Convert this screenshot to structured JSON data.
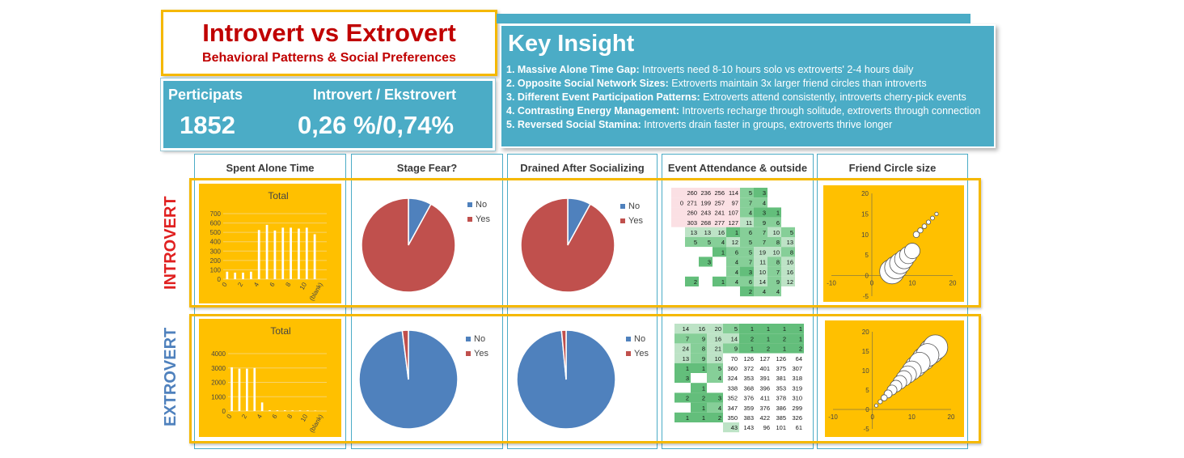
{
  "header": {
    "title": "Introvert vs Extrovert",
    "subtitle": "Behavioral Patterns & Social Preferences"
  },
  "kpi": {
    "participants_label": "Perticipats",
    "participants_value": "1852",
    "ratio_label": "Introvert / Ekstrovert",
    "ratio_value": "0,26 %/0,74%"
  },
  "insight": {
    "title": "Key Insight",
    "items": [
      {
        "bold": "1. Massive Alone Time Gap:",
        "text": " Introverts need 8-10 hours solo vs extroverts' 2-4 hours daily"
      },
      {
        "bold": "2. Opposite Social Network Sizes:",
        "text": " Extroverts maintain 3x larger friend circles than introverts"
      },
      {
        "bold": "3. Different Event Participation Patterns:",
        "text": " Extroverts attend consistently, introverts cherry-pick events"
      },
      {
        "bold": "4. Contrasting Energy Management:",
        "text": " Introverts recharge through solitude, extroverts through connection"
      },
      {
        "bold": "5. Reversed Social Stamina:",
        "text": " Introverts drain faster in groups, extroverts thrive longer"
      }
    ]
  },
  "columns": {
    "alone": "Spent Alone Time",
    "stage": "Stage Fear?",
    "drained": "Drained After Socializing",
    "event": "Event Attendance & outside",
    "friend": "Friend Circle size"
  },
  "rows": {
    "introvert": "INTROVERT",
    "extrovert": "EXTROVERT"
  },
  "colors": {
    "accent_orange": "#ffc000",
    "frame_gold": "#f5b800",
    "teal": "#4bacc6",
    "red_title": "#c00000",
    "pie_blue": "#4f81bd",
    "pie_red": "#c0504d",
    "green": "#63be7b",
    "pink": "#f8d7da"
  },
  "chart_data": [
    {
      "id": "introvert-alone",
      "type": "bar",
      "title": "Total",
      "categories": [
        "0",
        "1",
        "2",
        "3",
        "4",
        "5",
        "6",
        "7",
        "8",
        "9",
        "10",
        "11",
        "(blank)"
      ],
      "tick_labels": [
        "0",
        "2",
        "4",
        "6",
        "8",
        "10",
        "(blank)"
      ],
      "values": [
        80,
        70,
        70,
        80,
        525,
        580,
        520,
        550,
        550,
        540,
        550,
        480,
        0
      ],
      "ylim": [
        0,
        700
      ],
      "yticks": [
        "0",
        "100",
        "200",
        "300",
        "400",
        "500",
        "600",
        "700"
      ]
    },
    {
      "id": "extrovert-alone",
      "type": "bar",
      "title": "Total",
      "categories": [
        "0",
        "1",
        "2",
        "3",
        "4",
        "5",
        "6",
        "7",
        "8",
        "9",
        "10",
        "11",
        "(blank)"
      ],
      "tick_labels": [
        "0",
        "2",
        "4",
        "6",
        "8",
        "10",
        "(blank)"
      ],
      "values": [
        3050,
        2950,
        2950,
        3000,
        600,
        60,
        50,
        50,
        40,
        40,
        40,
        30,
        0
      ],
      "ylim": [
        0,
        4000
      ],
      "yticks": [
        "0",
        "1000",
        "2000",
        "3000",
        "4000"
      ]
    },
    {
      "id": "introvert-stage",
      "type": "pie",
      "labels": [
        "No",
        "Yes"
      ],
      "values": [
        0.08,
        0.92
      ]
    },
    {
      "id": "introvert-drained",
      "type": "pie",
      "labels": [
        "No",
        "Yes"
      ],
      "values": [
        0.08,
        0.92
      ]
    },
    {
      "id": "extrovert-stage",
      "type": "pie",
      "labels": [
        "No",
        "Yes"
      ],
      "values": [
        0.98,
        0.02
      ]
    },
    {
      "id": "extrovert-drained",
      "type": "pie",
      "labels": [
        "No",
        "Yes"
      ],
      "values": [
        0.985,
        0.015
      ]
    },
    {
      "id": "introvert-friend",
      "type": "scatter",
      "x": [
        5,
        6,
        7,
        8,
        9,
        10,
        11,
        12,
        13,
        14,
        15,
        16
      ],
      "y": [
        1,
        2,
        3,
        4,
        5,
        6,
        10,
        11,
        12,
        13,
        14,
        15
      ],
      "sizes": [
        12,
        11,
        10,
        9,
        8,
        7,
        2,
        1.5,
        1.2,
        1.0,
        0.8,
        0.6
      ],
      "xlim": [
        -10,
        20
      ],
      "ylim": [
        -5,
        20
      ],
      "xticks": [
        "-10",
        "0",
        "10",
        "20"
      ],
      "yticks": [
        "-5",
        "0",
        "5",
        "10",
        "15",
        "20"
      ]
    },
    {
      "id": "extrovert-friend",
      "type": "scatter",
      "x": [
        1,
        2,
        3,
        4,
        5,
        6,
        7,
        8,
        9,
        10,
        11,
        12,
        13,
        14,
        15,
        16
      ],
      "y": [
        1,
        2,
        3,
        4,
        5,
        6,
        7,
        8,
        9,
        10,
        11,
        12,
        13,
        14,
        15,
        16
      ],
      "sizes": [
        0.5,
        1,
        2,
        3,
        4,
        5,
        6,
        7,
        8,
        9,
        10,
        10,
        11,
        11,
        12,
        12
      ],
      "xlim": [
        -10,
        20
      ],
      "ylim": [
        -5,
        20
      ],
      "xticks": [
        "-10",
        "0",
        "10",
        "20"
      ],
      "yticks": [
        "-5",
        "0",
        "5",
        "10",
        "15",
        "20"
      ]
    },
    {
      "id": "introvert-event",
      "type": "table",
      "rows": [
        [
          "",
          "260",
          "236",
          "256",
          "114",
          "5",
          "3",
          ""
        ],
        [
          "0",
          "271",
          "199",
          "257",
          "97",
          "7",
          "4",
          ""
        ],
        [
          "",
          "260",
          "243",
          "241",
          "107",
          "4",
          "3",
          "1"
        ],
        [
          "",
          "303",
          "268",
          "277",
          "127",
          "11",
          "9",
          "6"
        ],
        [
          "",
          "13",
          "13",
          "16",
          "1",
          "6",
          "7",
          "10",
          "5"
        ],
        [
          "",
          "5",
          "5",
          "4",
          "12",
          "5",
          "7",
          "8",
          "13"
        ],
        [
          "",
          "",
          "",
          "1",
          "6",
          "5",
          "19",
          "10",
          "8"
        ],
        [
          "",
          "",
          "3",
          "",
          "4",
          "7",
          "11",
          "8",
          "16"
        ],
        [
          "",
          "",
          "",
          "",
          "4",
          "3",
          "10",
          "7",
          "16"
        ],
        [
          "",
          "2",
          "",
          "1",
          "4",
          "6",
          "14",
          "9",
          "12"
        ],
        [
          "",
          "",
          "",
          "",
          "",
          "2",
          "4",
          "4",
          ""
        ]
      ]
    },
    {
      "id": "extrovert-event",
      "type": "table",
      "rows": [
        [
          "14",
          "16",
          "20",
          "5",
          "1",
          "1",
          "1",
          "1"
        ],
        [
          "7",
          "9",
          "16",
          "14",
          "2",
          "1",
          "2",
          "1"
        ],
        [
          "24",
          "8",
          "21",
          "9",
          "1",
          "2",
          "1",
          "2"
        ],
        [
          "13",
          "9",
          "10",
          "70",
          "126",
          "127",
          "126",
          "64"
        ],
        [
          "1",
          "1",
          "5",
          "360",
          "372",
          "401",
          "375",
          "307"
        ],
        [
          "3",
          "",
          "4",
          "324",
          "353",
          "391",
          "381",
          "318"
        ],
        [
          "",
          "1",
          "",
          "338",
          "368",
          "396",
          "353",
          "319"
        ],
        [
          "2",
          "2",
          "3",
          "352",
          "376",
          "411",
          "378",
          "310"
        ],
        [
          "",
          "1",
          "4",
          "347",
          "359",
          "376",
          "386",
          "299"
        ],
        [
          "1",
          "1",
          "2",
          "350",
          "383",
          "422",
          "385",
          "326"
        ],
        [
          "",
          "",
          "",
          "43",
          "143",
          "96",
          "101",
          "61"
        ]
      ]
    }
  ]
}
